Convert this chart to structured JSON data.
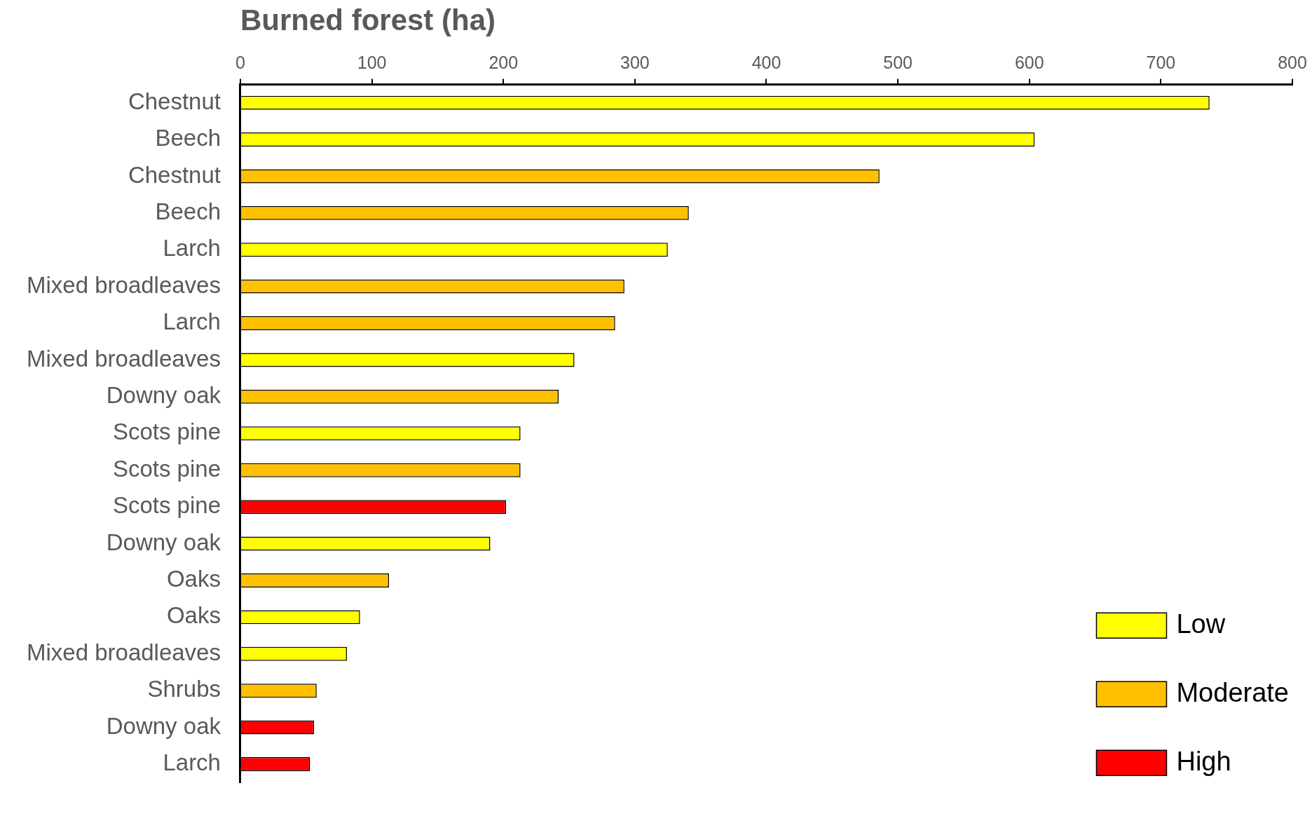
{
  "chart_data": {
    "type": "bar",
    "orientation": "horizontal",
    "xlabel": "Burned forest (ha)",
    "categories": [
      "Chestnut",
      "Beech",
      "Chestnut",
      "Beech",
      "Larch",
      "Mixed broadleaves",
      "Larch",
      "Mixed broadleaves",
      "Downy oak",
      "Scots pine",
      "Scots pine",
      "Scots pine",
      "Downy oak",
      "Oaks",
      "Oaks",
      "Mixed broadleaves",
      "Shrubs",
      "Downy oak",
      "Larch"
    ],
    "series": [
      {
        "name": "Low",
        "color": "#ffff00",
        "values": [
          737,
          604,
          null,
          null,
          325,
          null,
          null,
          254,
          null,
          213,
          null,
          null,
          190,
          null,
          91,
          81,
          null,
          null,
          null
        ]
      },
      {
        "name": "Moderate",
        "color": "#ffc000",
        "values": [
          null,
          null,
          486,
          341,
          null,
          292,
          285,
          null,
          242,
          null,
          213,
          null,
          null,
          113,
          null,
          null,
          58,
          null,
          null
        ]
      },
      {
        "name": "High",
        "color": "#ff0000",
        "values": [
          null,
          null,
          null,
          null,
          null,
          null,
          null,
          null,
          null,
          null,
          null,
          202,
          null,
          null,
          null,
          null,
          null,
          56,
          53
        ]
      }
    ],
    "xlim": [
      0,
      800
    ],
    "xticks": [
      0,
      100,
      200,
      300,
      400,
      500,
      600,
      700,
      800
    ],
    "grid": false,
    "legend": "bottom right"
  }
}
